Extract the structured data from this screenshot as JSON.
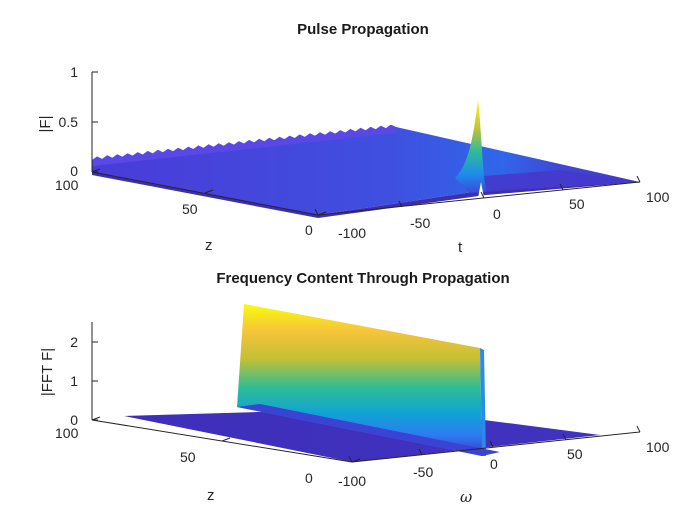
{
  "chart_data": [
    {
      "type": "surface",
      "title": "Pulse Propagation",
      "xlabel": "t",
      "ylabel": "z",
      "zlabel": "|F|",
      "xlim": [
        -100,
        100
      ],
      "ylim": [
        0,
        100
      ],
      "zlim": [
        0,
        1
      ],
      "x_ticks": [
        "-100",
        "-50",
        "0",
        "50",
        "100"
      ],
      "y_ticks": [
        "0",
        "50",
        "100"
      ],
      "z_ticks": [
        "0",
        "0.5",
        "1"
      ],
      "colormap": "parula",
      "surface": {
        "description_values": {
          "base_amplitude_at_z0": 0.1,
          "base_amplitude_at_z100": 0.1,
          "peak_t": 0,
          "peak_z": 0,
          "peak_amplitude": 0.72,
          "edge_ripple_at_t_minus_100": true
        }
      }
    },
    {
      "type": "surface",
      "title": "Frequency Content Through Propagation",
      "xlabel": "ω",
      "ylabel": "z",
      "zlabel": "|FFT F|",
      "xlim": [
        -100,
        100
      ],
      "ylim": [
        0,
        100
      ],
      "zlim": [
        0,
        2.5
      ],
      "x_ticks": [
        "-100",
        "-50",
        "0",
        "50",
        "100"
      ],
      "y_ticks": [
        "0",
        "50",
        "100"
      ],
      "z_ticks": [
        "0",
        "1",
        "2"
      ],
      "colormap": "parula",
      "surface": {
        "description_values": {
          "ridge_omega": 0,
          "ridge_height_at_z0": 2.5,
          "ridge_height_at_z100": 2.5,
          "background_level": 0
        }
      }
    }
  ]
}
